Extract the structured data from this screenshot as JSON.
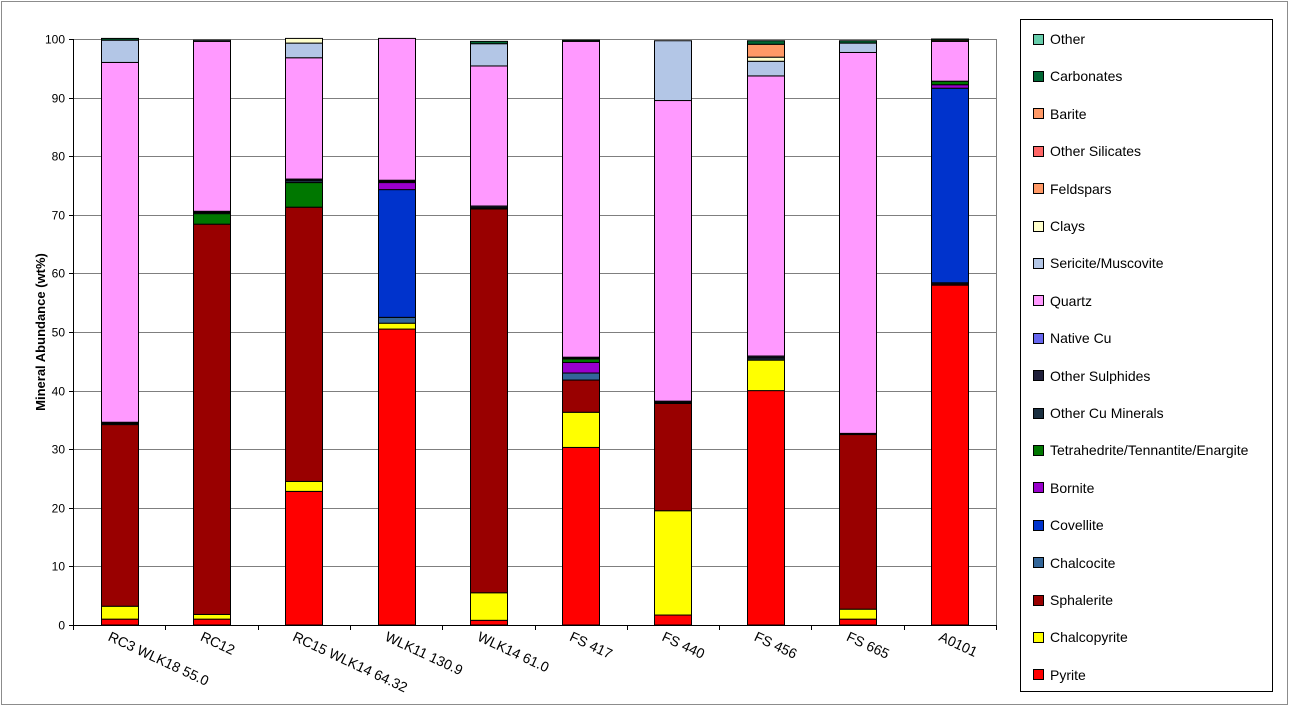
{
  "chart_data": {
    "type": "bar",
    "stacked": true,
    "title": "",
    "xlabel": "",
    "ylabel": "Mineral Abundance  (wt%)",
    "ylim": [
      0,
      100
    ],
    "yticks": [
      0,
      10,
      20,
      30,
      40,
      50,
      60,
      70,
      80,
      90,
      100
    ],
    "grid": true,
    "legend_position": "right",
    "categories": [
      "RC3  WLK18 55.0",
      "RC12",
      "RC15  WLK14  64.32",
      "WLK11  130.9",
      "WLK14  61.0",
      "FS 417",
      "FS 440",
      "FS 456",
      "FS 665",
      "A0101"
    ],
    "series": [
      {
        "name": "Pyrite",
        "color": "#ff0000",
        "values": [
          1.0,
          1.0,
          22.8,
          50.5,
          0.8,
          30.3,
          1.7,
          40.0,
          1.0,
          58.0
        ]
      },
      {
        "name": "Chalcopyrite",
        "color": "#ffff00",
        "values": [
          2.2,
          0.8,
          1.7,
          1.0,
          4.7,
          6.0,
          17.8,
          5.2,
          1.7,
          0.0
        ]
      },
      {
        "name": "Sphalerite",
        "color": "#990000",
        "values": [
          31.0,
          66.6,
          46.8,
          0.0,
          65.5,
          5.5,
          18.3,
          0.0,
          29.8,
          0.2
        ]
      },
      {
        "name": "Chalcocite",
        "color": "#336699",
        "values": [
          0.0,
          0.0,
          0.0,
          1.0,
          0.0,
          1.2,
          0.0,
          0.0,
          0.0,
          0.2
        ]
      },
      {
        "name": "Covellite",
        "color": "#0033cc",
        "values": [
          0.0,
          0.0,
          0.0,
          21.8,
          0.0,
          0.0,
          0.0,
          0.0,
          0.0,
          33.2
        ]
      },
      {
        "name": "Bornite",
        "color": "#9900cc",
        "values": [
          0.0,
          0.0,
          0.0,
          1.2,
          0.0,
          1.8,
          0.0,
          0.0,
          0.0,
          0.6
        ]
      },
      {
        "name": "Tetrahedrite/Tennantite/Enargite",
        "color": "#007700",
        "values": [
          0.0,
          1.8,
          4.2,
          0.0,
          0.0,
          0.6,
          0.0,
          0.0,
          0.0,
          0.6
        ]
      },
      {
        "name": "Other Cu Minerals",
        "color": "#1a2f40",
        "values": [
          0.2,
          0.2,
          0.4,
          0.2,
          0.2,
          0.1,
          0.2,
          0.4,
          0.1,
          0.0
        ]
      },
      {
        "name": "Other Sulphides",
        "color": "#1f1f3a",
        "values": [
          0.2,
          0.2,
          0.2,
          0.2,
          0.3,
          0.2,
          0.2,
          0.3,
          0.1,
          0.0
        ]
      },
      {
        "name": "Native Cu",
        "color": "#6666ee",
        "values": [
          0.0,
          0.0,
          0.0,
          0.0,
          0.0,
          0.0,
          0.0,
          0.0,
          0.0,
          0.0
        ]
      },
      {
        "name": "Quartz",
        "color": "#ff99ff",
        "values": [
          61.4,
          29.0,
          20.7,
          24.2,
          23.9,
          53.9,
          51.3,
          47.8,
          65.0,
          6.8
        ]
      },
      {
        "name": "Sericite/Muscovite",
        "color": "#b3c6e6",
        "values": [
          3.8,
          0.2,
          2.5,
          0.0,
          3.8,
          0.0,
          10.2,
          2.5,
          1.6,
          0.0
        ]
      },
      {
        "name": "Clays",
        "color": "#ffffcc",
        "values": [
          0.0,
          0.0,
          0.8,
          0.0,
          0.0,
          0.0,
          0.0,
          0.7,
          0.0,
          0.0
        ]
      },
      {
        "name": "Feldspars",
        "color": "#ff9966",
        "values": [
          0.0,
          0.0,
          0.0,
          0.0,
          0.0,
          0.0,
          0.0,
          2.2,
          0.0,
          0.2
        ]
      },
      {
        "name": "Other Silicates",
        "color": "#ff6666",
        "values": [
          0.0,
          0.0,
          0.0,
          0.0,
          0.0,
          0.0,
          0.0,
          0.0,
          0.0,
          0.0
        ]
      },
      {
        "name": "Barite",
        "color": "#ff9966",
        "values": [
          0.0,
          0.0,
          0.0,
          0.0,
          0.0,
          0.0,
          0.0,
          0.0,
          0.0,
          0.0
        ]
      },
      {
        "name": "Carbonates",
        "color": "#006633",
        "values": [
          0.3,
          0.0,
          0.0,
          0.0,
          0.4,
          0.2,
          0.0,
          0.6,
          0.4,
          0.2
        ]
      },
      {
        "name": "Other",
        "color": "#66ccaa",
        "values": [
          0.0,
          0.0,
          0.0,
          0.0,
          0.0,
          0.0,
          0.0,
          0.0,
          0.0,
          0.0
        ]
      }
    ]
  }
}
